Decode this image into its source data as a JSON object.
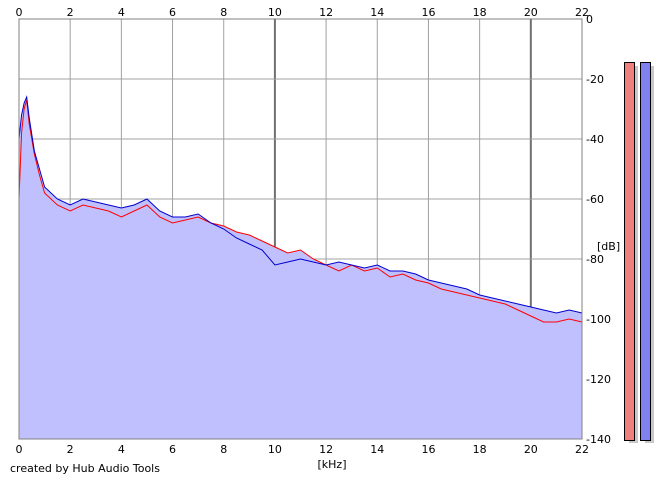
{
  "chart_data": {
    "type": "area",
    "title": "",
    "xlabel": "[kHz]",
    "ylabel": "[dB]",
    "xlim": [
      0,
      22
    ],
    "ylim": [
      -140,
      0
    ],
    "x_ticks": [
      0,
      2,
      4,
      6,
      8,
      10,
      12,
      14,
      16,
      18,
      20,
      22
    ],
    "y_ticks": [
      0,
      -20,
      -40,
      -60,
      -80,
      -100,
      -120,
      -140
    ],
    "grid": true,
    "legend": "none",
    "fill_color": "#c0c0ff",
    "series": [
      {
        "color": "#ff0000",
        "x": [
          0,
          0.1,
          0.2,
          0.3,
          0.4,
          0.6,
          0.8,
          1.0,
          1.5,
          2,
          2.5,
          3,
          3.5,
          4,
          4.5,
          5,
          5.5,
          6,
          6.5,
          7,
          7.5,
          8,
          8.5,
          9,
          9.5,
          10,
          10.5,
          11,
          11.5,
          12,
          12.5,
          13,
          13.5,
          14,
          14.5,
          15,
          15.5,
          16,
          16.5,
          17,
          17.5,
          18,
          18.5,
          19,
          19.5,
          20,
          20.5,
          21,
          21.5,
          22
        ],
        "y": [
          -60,
          -38,
          -30,
          -27,
          -35,
          -45,
          -52,
          -58,
          -62,
          -64,
          -62,
          -63,
          -64,
          -66,
          -64,
          -62,
          -66,
          -68,
          -67,
          -66,
          -68,
          -69,
          -71,
          -72,
          -74,
          -76,
          -78,
          -77,
          -80,
          -82,
          -84,
          -82,
          -84,
          -83,
          -86,
          -85,
          -87,
          -88,
          -90,
          -91,
          -92,
          -93,
          -94,
          -95,
          -97,
          -99,
          -101,
          -101,
          -100,
          -101
        ]
      },
      {
        "color": "#0000cc",
        "x": [
          0,
          0.1,
          0.2,
          0.3,
          0.4,
          0.6,
          0.8,
          1.0,
          1.5,
          2,
          2.5,
          3,
          3.5,
          4,
          4.5,
          5,
          5.5,
          6,
          6.5,
          7,
          7.5,
          8,
          8.5,
          9,
          9.5,
          10,
          10.5,
          11,
          11.5,
          12,
          12.5,
          13,
          13.5,
          14,
          14.5,
          15,
          15.5,
          16,
          16.5,
          17,
          17.5,
          18,
          18.5,
          19,
          19.5,
          20,
          20.5,
          21,
          21.5,
          22
        ],
        "y": [
          -40,
          -32,
          -28,
          -26,
          -33,
          -44,
          -50,
          -56,
          -60,
          -62,
          -60,
          -61,
          -62,
          -63,
          -62,
          -60,
          -64,
          -66,
          -66,
          -65,
          -68,
          -70,
          -73,
          -75,
          -77,
          -82,
          -81,
          -80,
          -81,
          -82,
          -81,
          -82,
          -83,
          -82,
          -84,
          -84,
          -85,
          -87,
          -88,
          -89,
          -90,
          -92,
          -93,
          -94,
          -95,
          -96,
          -97,
          -98,
          -97,
          -98
        ]
      }
    ]
  },
  "meters": {
    "left_color": "#f08080",
    "right_color": "#8080f0",
    "left_level": 1.0,
    "right_level": 1.0
  },
  "credit": "created by Hub Audio Tools"
}
